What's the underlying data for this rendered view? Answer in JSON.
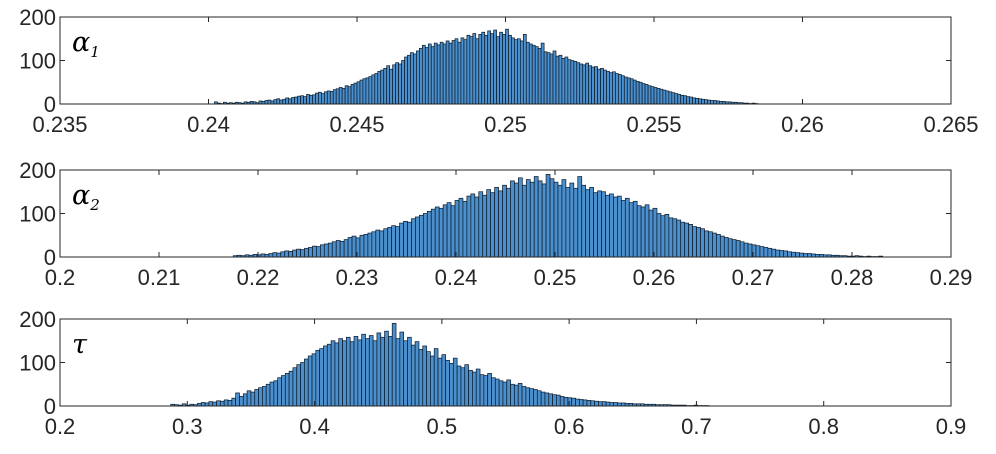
{
  "chart_data": [
    {
      "type": "bar",
      "title": "",
      "xlabel": "",
      "ylabel": "",
      "series_label": {
        "symbol": "α",
        "subscript": "1"
      },
      "xlim": [
        0.235,
        0.265
      ],
      "ylim": [
        0,
        200
      ],
      "xticks": [
        "0.235",
        "0.24",
        "0.245",
        "0.25",
        "0.255",
        "0.26",
        "0.265"
      ],
      "yticks": [
        "0",
        "100",
        "200"
      ],
      "bin_start": 0.2402,
      "bin_width": 0.0001,
      "counts": [
        5,
        2,
        1,
        4,
        2,
        3,
        2,
        4,
        3,
        2,
        5,
        4,
        6,
        5,
        3,
        7,
        6,
        8,
        9,
        7,
        10,
        12,
        9,
        11,
        14,
        12,
        15,
        16,
        18,
        19,
        17,
        22,
        20,
        21,
        25,
        27,
        24,
        28,
        30,
        29,
        33,
        35,
        38,
        36,
        42,
        40,
        45,
        48,
        51,
        55,
        58,
        60,
        63,
        67,
        70,
        75,
        78,
        82,
        88,
        80,
        90,
        95,
        92,
        100,
        108,
        112,
        118,
        115,
        122,
        128,
        135,
        130,
        138,
        132,
        140,
        136,
        142,
        138,
        145,
        140,
        146,
        150,
        142,
        152,
        148,
        158,
        155,
        162,
        150,
        160,
        165,
        158,
        168,
        162,
        170,
        155,
        165,
        160,
        172,
        158,
        152,
        148,
        150,
        145,
        160,
        142,
        138,
        135,
        132,
        128,
        140,
        120,
        118,
        115,
        122,
        110,
        112,
        105,
        108,
        102,
        100,
        98,
        95,
        92,
        90,
        94,
        88,
        85,
        86,
        80,
        82,
        78,
        75,
        72,
        74,
        70,
        68,
        65,
        62,
        60,
        58,
        55,
        52,
        50,
        47,
        45,
        42,
        40,
        38,
        36,
        34,
        32,
        30,
        28,
        26,
        24,
        22,
        20,
        19,
        17,
        16,
        14,
        13,
        12,
        11,
        10,
        9,
        8,
        8,
        7,
        6,
        6,
        5,
        5,
        4,
        4,
        3,
        3,
        2,
        2,
        1,
        2,
        1
      ]
    },
    {
      "type": "bar",
      "title": "",
      "xlabel": "",
      "ylabel": "",
      "series_label": {
        "symbol": "α",
        "subscript": "2"
      },
      "xlim": [
        0.2,
        0.29
      ],
      "ylim": [
        0,
        200
      ],
      "xticks": [
        "0.2",
        "0.21",
        "0.22",
        "0.23",
        "0.24",
        "0.25",
        "0.26",
        "0.27",
        "0.28",
        "0.29"
      ],
      "yticks": [
        "0",
        "100",
        "200"
      ],
      "bin_start": 0.2175,
      "bin_width": 0.0004,
      "counts": [
        3,
        4,
        3,
        5,
        4,
        6,
        5,
        7,
        6,
        8,
        10,
        9,
        12,
        14,
        13,
        16,
        18,
        17,
        20,
        22,
        25,
        24,
        28,
        30,
        32,
        35,
        38,
        36,
        40,
        45,
        48,
        44,
        50,
        52,
        55,
        58,
        62,
        60,
        65,
        68,
        72,
        70,
        78,
        82,
        80,
        88,
        92,
        96,
        100,
        105,
        110,
        115,
        112,
        120,
        125,
        118,
        130,
        135,
        128,
        140,
        145,
        138,
        150,
        142,
        155,
        148,
        160,
        152,
        165,
        158,
        175,
        170,
        182,
        165,
        178,
        172,
        185,
        175,
        168,
        190,
        180,
        172,
        165,
        178,
        160,
        170,
        158,
        185,
        165,
        155,
        160,
        148,
        152,
        150,
        142,
        145,
        138,
        140,
        130,
        135,
        125,
        128,
        118,
        115,
        120,
        108,
        112,
        100,
        95,
        98,
        90,
        88,
        85,
        80,
        78,
        75,
        70,
        68,
        65,
        60,
        58,
        55,
        52,
        48,
        45,
        42,
        40,
        38,
        35,
        32,
        30,
        28,
        26,
        24,
        22,
        20,
        18,
        16,
        15,
        14,
        12,
        11,
        10,
        9,
        8,
        8,
        7,
        6,
        6,
        5,
        5,
        4,
        4,
        3,
        3,
        2,
        2,
        3,
        2,
        1,
        2,
        1,
        1,
        2
      ]
    },
    {
      "type": "bar",
      "title": "",
      "xlabel": "",
      "ylabel": "",
      "series_label": {
        "symbol": "τ",
        "subscript": ""
      },
      "xlim": [
        0.2,
        0.9
      ],
      "ylim": [
        0,
        200
      ],
      "xticks": [
        "0.2",
        "0.3",
        "0.4",
        "0.5",
        "0.6",
        "0.7",
        "0.8",
        "0.9"
      ],
      "yticks": [
        "0",
        "100",
        "200"
      ],
      "bin_start": 0.287,
      "bin_width": 0.003,
      "counts": [
        4,
        3,
        2,
        5,
        2,
        4,
        3,
        6,
        8,
        7,
        10,
        9,
        12,
        11,
        14,
        13,
        18,
        30,
        22,
        28,
        35,
        32,
        38,
        42,
        45,
        50,
        55,
        58,
        65,
        70,
        75,
        80,
        88,
        95,
        100,
        108,
        115,
        120,
        128,
        132,
        138,
        142,
        150,
        145,
        155,
        150,
        158,
        148,
        160,
        152,
        165,
        155,
        162,
        150,
        168,
        158,
        172,
        160,
        190,
        155,
        170,
        150,
        158,
        140,
        148,
        130,
        138,
        125,
        115,
        132,
        110,
        118,
        105,
        98,
        110,
        92,
        88,
        95,
        82,
        78,
        85,
        72,
        70,
        75,
        65,
        62,
        58,
        55,
        60,
        50,
        48,
        52,
        45,
        42,
        40,
        38,
        35,
        32,
        30,
        28,
        26,
        25,
        22,
        20,
        19,
        18,
        16,
        15,
        14,
        13,
        12,
        11,
        10,
        10,
        9,
        8,
        8,
        7,
        7,
        6,
        6,
        5,
        5,
        5,
        4,
        4,
        4,
        3,
        3,
        3,
        3,
        2,
        2,
        2,
        2,
        1,
        1,
        2,
        1,
        1,
        1
      ]
    }
  ],
  "colors": {
    "bar_fill": "#4b8fcc",
    "bar_edge": "#0b1a2a",
    "axis": "#262626",
    "background": "#ffffff"
  }
}
